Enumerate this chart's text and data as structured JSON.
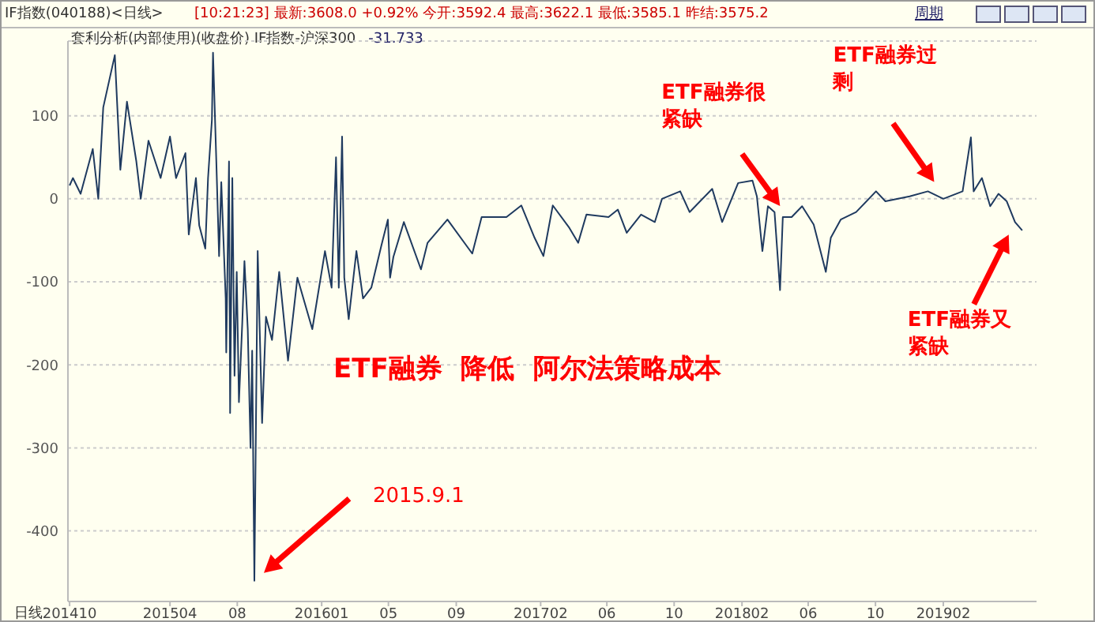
{
  "chart_data": {
    "type": "line",
    "title": "套利分析(内部使用)(收盘价) IF指数-沪深300",
    "annotations": [
      "IF指数(040188)<日线>",
      "[10:21:23] 最新:3608.0 +0.92% 今开:3592.4 最高:3622.1 最低:3585.1 昨结:3575.2",
      "周期",
      "-31.733",
      "日线",
      "ETF融券  降低  阿尔法策略成本",
      "2015.9.1",
      "ETF融券很紧缺",
      "ETF融券过剩",
      "ETF融券又紧缺"
    ],
    "x": [
      "2014-10-01",
      "2014-10-07",
      "2014-10-21",
      "2014-11-12",
      "2014-11-22",
      "2014-12-01",
      "2014-12-22",
      "2015-01-01",
      "2015-01-13",
      "2015-01-30",
      "2015-02-07",
      "2015-02-21",
      "2015-03-15",
      "2015-04-01",
      "2015-04-12",
      "2015-04-29",
      "2015-05-05",
      "2015-05-18",
      "2015-05-24",
      "2015-06-04",
      "2015-06-09",
      "2015-06-16",
      "2015-06-18",
      "2015-06-24",
      "2015-06-29",
      "2015-07-03",
      "2015-07-11",
      "2015-07-12",
      "2015-07-17",
      "2015-07-19",
      "2015-07-23",
      "2015-07-27",
      "2015-07-31",
      "2015-08-04",
      "2015-08-10",
      "2015-08-14",
      "2015-08-20",
      "2015-08-25",
      "2015-08-28",
      "2015-09-01",
      "2015-09-07",
      "2015-09-15",
      "2015-09-22",
      "2015-10-03",
      "2015-10-16",
      "2015-11-01",
      "2015-11-18",
      "2015-12-15",
      "2016-01-07",
      "2016-01-19",
      "2016-01-27",
      "2016-02-01",
      "2016-02-07",
      "2016-02-11",
      "2016-02-19",
      "2016-03-04",
      "2016-03-16",
      "2016-03-31",
      "2016-04-18",
      "2016-04-30",
      "2016-05-04",
      "2016-05-10",
      "2016-05-29",
      "2016-06-29",
      "2016-07-11",
      "2016-08-16",
      "2016-09-30",
      "2016-10-17",
      "2016-12-01",
      "2016-12-28",
      "2017-01-21",
      "2017-02-06",
      "2017-02-23",
      "2017-03-25",
      "2017-04-10",
      "2017-04-25",
      "2017-06-04",
      "2017-06-21",
      "2017-07-07",
      "2017-08-02",
      "2017-08-27",
      "2017-09-09",
      "2017-10-12",
      "2017-10-29",
      "2017-12-09",
      "2017-12-27",
      "2018-01-25",
      "2018-02-20",
      "2018-02-28",
      "2018-03-10",
      "2018-03-20",
      "2018-04-01",
      "2018-04-11",
      "2018-04-16",
      "2018-05-02",
      "2018-05-21",
      "2018-06-11",
      "2018-07-03",
      "2018-07-12",
      "2018-07-30",
      "2018-08-27",
      "2018-10-02",
      "2018-10-19",
      "2018-12-02",
      "2019-01-04",
      "2019-02-01",
      "2019-03-08",
      "2019-03-23",
      "2019-03-28",
      "2019-04-12",
      "2019-04-27",
      "2019-05-12",
      "2019-05-27",
      "2019-06-11",
      "2019-06-24"
    ],
    "series": [
      {
        "color": "#1f3a5f",
        "values": [
          16,
          25,
          6,
          60,
          0,
          110,
          173,
          35,
          117,
          45,
          0,
          70,
          25,
          75,
          25,
          55,
          -43,
          25,
          -32,
          -60,
          25,
          95,
          176,
          45,
          -69,
          20,
          -120,
          -185,
          45,
          -258,
          25,
          -213,
          -88,
          -245,
          -150,
          -75,
          -157,
          -300,
          -183,
          -460,
          -63,
          -270,
          -142,
          -170,
          -88,
          -195,
          -95,
          -157,
          -63,
          -107,
          50,
          -107,
          75,
          -95,
          -145,
          -63,
          -120,
          -107,
          -57,
          -25,
          -95,
          -70,
          -28,
          -85,
          -53,
          -25,
          -66,
          -22,
          -22,
          -8,
          -47,
          -69,
          -8,
          -35,
          -53,
          -19,
          -22,
          -13,
          -41,
          -19,
          -28,
          0,
          9,
          -16,
          12,
          -28,
          19,
          22,
          3,
          -63,
          -9,
          -16,
          -110,
          -22,
          -22,
          -9,
          -31,
          -88,
          -47,
          -25,
          -16,
          9,
          -3,
          3,
          9,
          0,
          9,
          74,
          9,
          25,
          -9,
          6,
          -3,
          -28,
          -38
        ]
      }
    ],
    "xlim": [
      "2014-09-28",
      "2019-07-20"
    ],
    "xticks": [
      {
        "value": "2014-10-01",
        "label": "201410"
      },
      {
        "value": "2015-04-01",
        "label": "201504"
      },
      {
        "value": "2015-08-01",
        "label": "08"
      },
      {
        "value": "2016-01-01",
        "label": "201601"
      },
      {
        "value": "2016-05-01",
        "label": "05"
      },
      {
        "value": "2016-09-01",
        "label": "09"
      },
      {
        "value": "2017-02-01",
        "label": "201702"
      },
      {
        "value": "2017-06-01",
        "label": "06"
      },
      {
        "value": "2017-10-01",
        "label": "10"
      },
      {
        "value": "2018-02-01",
        "label": "201802"
      },
      {
        "value": "2018-06-01",
        "label": "06"
      },
      {
        "value": "2018-10-01",
        "label": "10"
      },
      {
        "value": "2019-02-01",
        "label": "201902"
      }
    ],
    "ylim": [
      -485,
      190
    ],
    "yticks": [
      -400,
      -300,
      -200,
      -100,
      0,
      100
    ],
    "grid": "y",
    "marker": "none",
    "line_style": "solid"
  }
}
